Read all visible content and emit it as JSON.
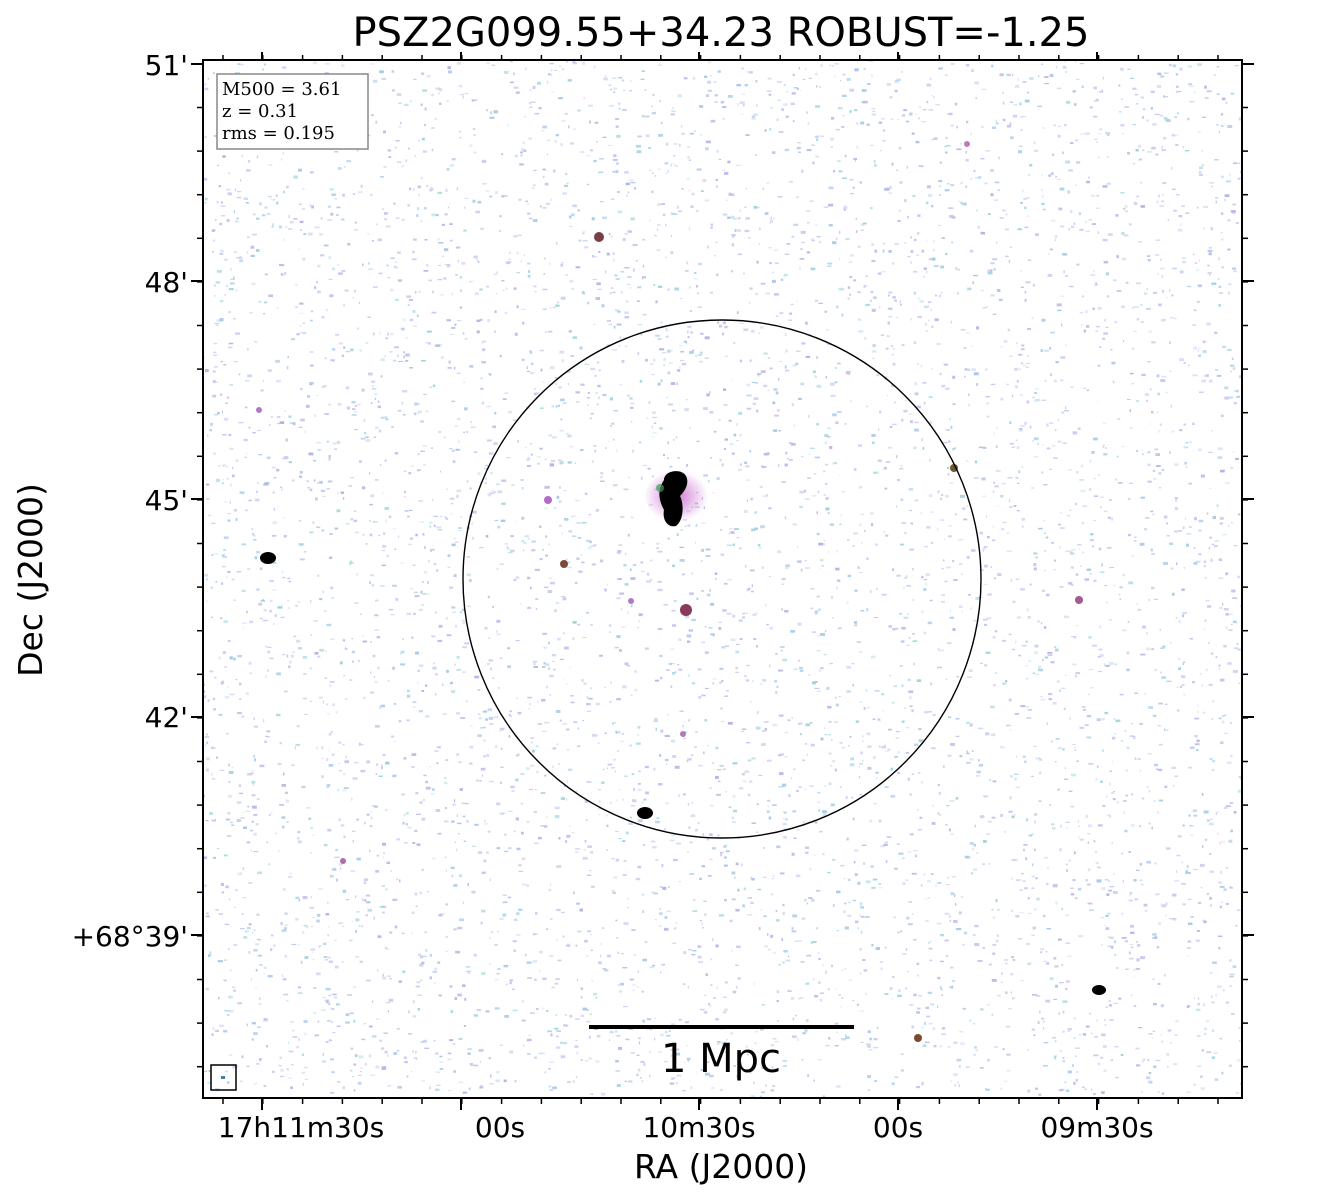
{
  "chart_data": {
    "type": "radio-image",
    "title": "PSZ2G099.55+34.23 ROBUST=-1.25",
    "xlabel": "RA (J2000)",
    "ylabel": "Dec (J2000)",
    "x_tick_labels": [
      "17h11m30s",
      "00s",
      "10m30s",
      "00s",
      "09m30s"
    ],
    "y_tick_labels": [
      "+68°39'",
      "42'",
      "45'",
      "48'",
      "51'"
    ],
    "info_box": [
      "M500 = 3.61",
      "z = 0.31",
      "rms = 0.195"
    ],
    "scale_bar_label": "1 Mpc",
    "colors": {
      "noise": [
        "#a9c6e8",
        "#b7b2e6",
        "#9fd0de",
        "#c4c0ee"
      ],
      "source_core": "#000000",
      "source_halo": "#c86ad0",
      "circle": "#000000",
      "info_box_border": "#888888"
    },
    "sources": [
      {
        "name": "central-bright-source",
        "ra": "17h10m33s",
        "dec": "+68°44'50\""
      },
      {
        "name": "west-source",
        "ra": "17h11m35s",
        "dec": "+68°44'12\""
      },
      {
        "name": "south-source",
        "ra": "17h10m40s",
        "dec": "+68°40'30\""
      },
      {
        "name": "southeast-source",
        "ra": "17h09m30s",
        "dec": "+68°38'10\""
      }
    ]
  }
}
